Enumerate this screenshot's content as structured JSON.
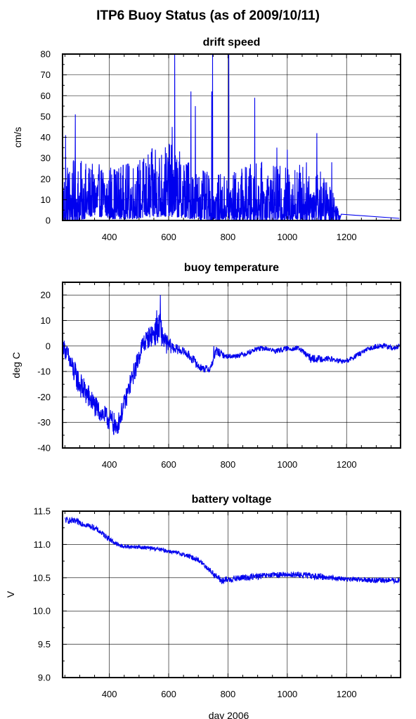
{
  "figure": {
    "title": "ITP6 Buoy Status (as of 2009/10/11)"
  },
  "chart_data": [
    {
      "id": "drift",
      "type": "line",
      "title": "drift speed",
      "xlabel": "",
      "ylabel": "cm/s",
      "xlim": [
        242,
        1382
      ],
      "ylim": [
        0,
        80
      ],
      "xticks": [
        400,
        600,
        800,
        1000,
        1200
      ],
      "yticks": [
        0,
        10,
        20,
        30,
        40,
        50,
        60,
        70,
        80
      ],
      "grid": true,
      "color": "#0000ee",
      "series_shape": {
        "x": [
          245,
          300,
          350,
          400,
          450,
          500,
          550,
          600,
          650,
          700,
          750,
          800,
          850,
          900,
          950,
          1000,
          1050,
          1100,
          1150,
          1178
        ],
        "y": [
          8,
          9,
          10,
          9,
          9,
          10,
          12,
          13,
          11,
          8,
          7,
          7,
          8,
          9,
          8,
          8,
          9,
          8,
          5,
          2
        ],
        "noise_amplitude": [
          14,
          13,
          11,
          12,
          12,
          13,
          15,
          16,
          14,
          11,
          10,
          10,
          12,
          13,
          12,
          12,
          13,
          12,
          8,
          3
        ]
      },
      "spikes": [
        {
          "x": 252,
          "y": 41
        },
        {
          "x": 285,
          "y": 51
        },
        {
          "x": 620,
          "y": 80
        },
        {
          "x": 612,
          "y": 45
        },
        {
          "x": 675,
          "y": 62
        },
        {
          "x": 690,
          "y": 55
        },
        {
          "x": 748,
          "y": 80
        },
        {
          "x": 745,
          "y": 62
        },
        {
          "x": 803,
          "y": 80
        },
        {
          "x": 890,
          "y": 59
        },
        {
          "x": 1100,
          "y": 42
        },
        {
          "x": 1150,
          "y": 28
        },
        {
          "x": 555,
          "y": 34
        },
        {
          "x": 1000,
          "y": 34
        },
        {
          "x": 965,
          "y": 35
        }
      ],
      "tail": [
        [
          1178,
          1
        ],
        [
          1182,
          3
        ],
        [
          1378,
          1
        ]
      ]
    },
    {
      "id": "temp",
      "type": "line",
      "title": "buoy temperature",
      "xlabel": "",
      "ylabel": "deg C",
      "xlim": [
        242,
        1382
      ],
      "ylim": [
        -40,
        25
      ],
      "xticks": [
        400,
        600,
        800,
        1000,
        1200
      ],
      "yticks": [
        -40,
        -30,
        -20,
        -10,
        0,
        10,
        20
      ],
      "grid": true,
      "color": "#0000ee",
      "series_shape": {
        "x": [
          245,
          260,
          280,
          300,
          330,
          360,
          390,
          410,
          425,
          450,
          470,
          490,
          510,
          530,
          550,
          570,
          590,
          620,
          650,
          680,
          700,
          720,
          740,
          760,
          790,
          820,
          860,
          900,
          930,
          960,
          1000,
          1040,
          1060,
          1080,
          1100,
          1140,
          1180,
          1200,
          1230,
          1260,
          1300,
          1330,
          1360,
          1378
        ],
        "y": [
          0,
          -4,
          -10,
          -15,
          -20,
          -25,
          -28,
          -30,
          -32,
          -23,
          -15,
          -8,
          0,
          3,
          5,
          7,
          1,
          -1,
          -2,
          -5,
          -8,
          -9,
          -9,
          -2,
          -4,
          -4,
          -3,
          -1,
          -1,
          -2,
          -1,
          -1,
          -3,
          -5,
          -5,
          -5,
          -6,
          -6,
          -4,
          -2,
          0,
          0,
          -1,
          0
        ],
        "noise_amplitude": [
          3,
          4,
          5,
          5,
          5,
          4,
          4,
          5,
          4,
          4,
          4,
          4,
          4,
          4,
          5,
          6,
          4,
          2,
          1.5,
          2,
          1.5,
          1.5,
          1.5,
          2,
          1,
          1,
          1,
          1,
          1,
          1,
          1,
          1,
          1.5,
          1.5,
          1.5,
          1,
          1,
          1,
          1,
          1,
          1,
          1,
          1,
          1
        ]
      },
      "spikes": [
        {
          "x": 572,
          "y": 20
        },
        {
          "x": 422,
          "y": -34
        },
        {
          "x": 560,
          "y": 14
        },
        {
          "x": 752,
          "y": 0
        },
        {
          "x": 690,
          "y": -5
        }
      ]
    },
    {
      "id": "volt",
      "type": "line",
      "title": "battery voltage",
      "xlabel": "day 2006",
      "ylabel": "V",
      "xlim": [
        242,
        1382
      ],
      "ylim": [
        9.0,
        11.5
      ],
      "xticks": [
        400,
        600,
        800,
        1000,
        1200
      ],
      "yticks": [
        9.0,
        9.5,
        10.0,
        10.5,
        11.0,
        11.5
      ],
      "ytick_labels": [
        "9.0",
        "9.5",
        "10.0",
        "10.5",
        "11.0",
        "11.5"
      ],
      "grid": true,
      "color": "#0000ee",
      "series_shape": {
        "x": [
          250,
          300,
          350,
          380,
          410,
          430,
          450,
          500,
          550,
          600,
          650,
          700,
          730,
          760,
          780,
          800,
          850,
          900,
          950,
          1000,
          1050,
          1100,
          1150,
          1200,
          1250,
          1300,
          1350,
          1378
        ],
        "y": [
          11.37,
          11.33,
          11.25,
          11.15,
          11.05,
          10.99,
          10.97,
          10.96,
          10.94,
          10.9,
          10.85,
          10.77,
          10.65,
          10.52,
          10.45,
          10.47,
          10.5,
          10.52,
          10.54,
          10.55,
          10.54,
          10.52,
          10.5,
          10.48,
          10.47,
          10.46,
          10.46,
          10.45
        ],
        "noise_amplitude": [
          0.05,
          0.05,
          0.04,
          0.04,
          0.04,
          0.03,
          0.03,
          0.03,
          0.03,
          0.03,
          0.03,
          0.04,
          0.04,
          0.05,
          0.06,
          0.05,
          0.05,
          0.05,
          0.04,
          0.04,
          0.05,
          0.05,
          0.04,
          0.03,
          0.04,
          0.04,
          0.04,
          0.04
        ]
      },
      "spikes": []
    }
  ]
}
